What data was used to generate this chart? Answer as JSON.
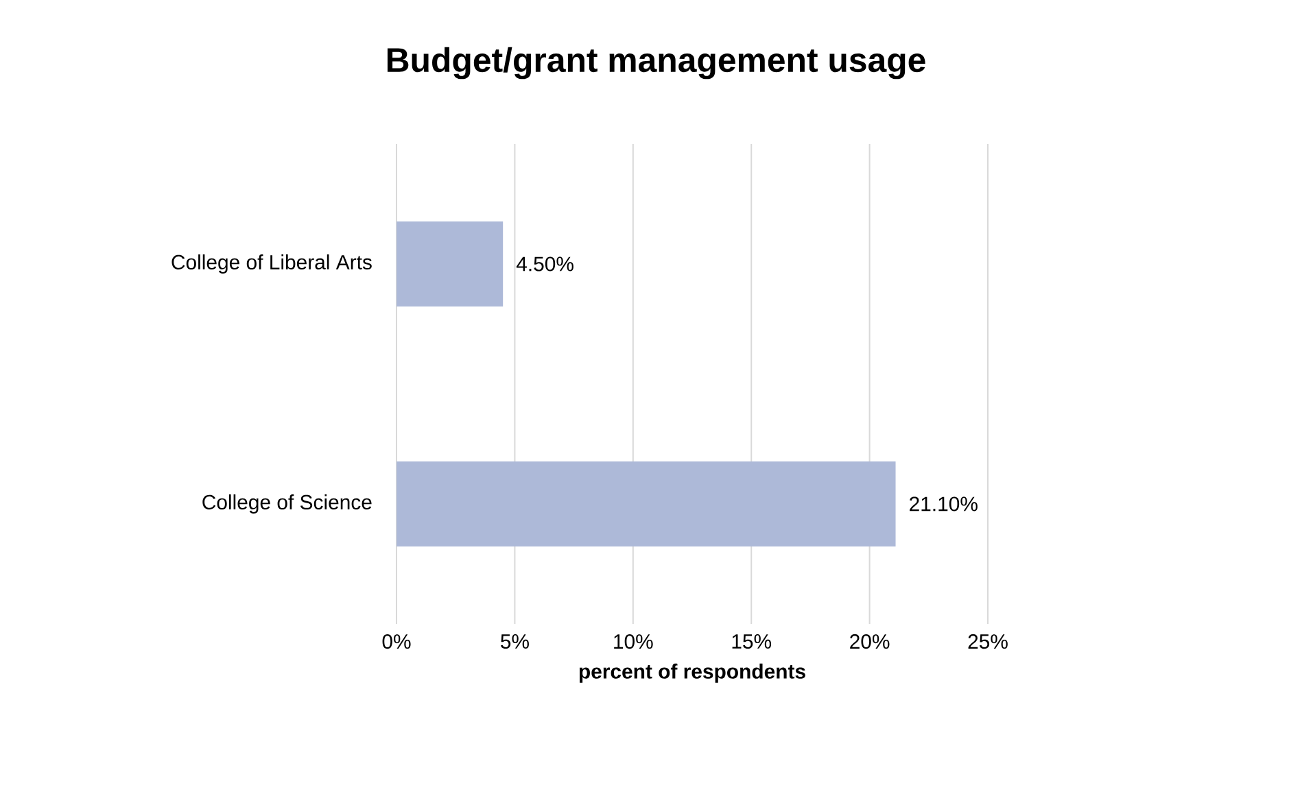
{
  "chart_data": {
    "type": "bar",
    "orientation": "horizontal",
    "title": "Budget/grant management usage",
    "xlabel": "percent of respondents",
    "categories": [
      "College of Liberal Arts",
      "College of Science"
    ],
    "values": [
      4.5,
      21.1
    ],
    "value_labels": [
      "4.50%",
      "21.10%"
    ],
    "color": "#adb9d8",
    "xlim": [
      0,
      25
    ],
    "xticks": [
      {
        "value": 0,
        "label": "0%"
      },
      {
        "value": 5,
        "label": "5%"
      },
      {
        "value": 10,
        "label": "10%"
      },
      {
        "value": 15,
        "label": "15%"
      },
      {
        "value": 20,
        "label": "20%"
      },
      {
        "value": 25,
        "label": "25%"
      }
    ],
    "grid": "x"
  }
}
